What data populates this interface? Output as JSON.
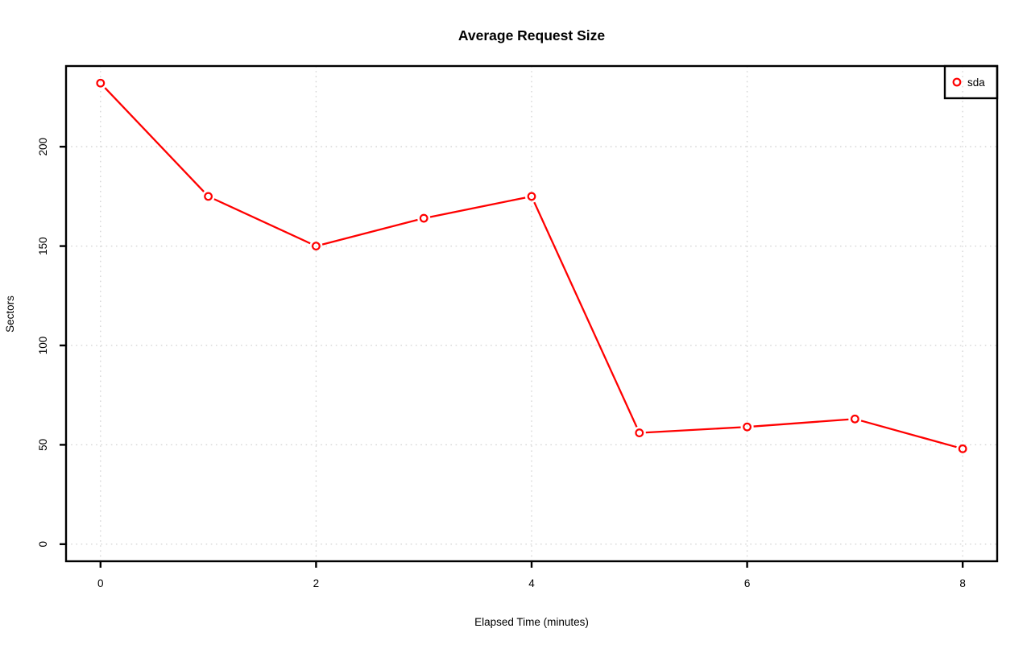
{
  "chart_data": {
    "type": "line",
    "title": "Average Request Size",
    "xlabel": "Elapsed Time (minutes)",
    "ylabel": "Sectors",
    "x": [
      0,
      1,
      2,
      3,
      4,
      5,
      6,
      7,
      8
    ],
    "series": [
      {
        "name": "sda",
        "color": "#ff0000",
        "marker": "open-circle",
        "values": [
          232,
          175,
          150,
          164,
          175,
          56,
          59,
          63,
          48
        ]
      }
    ],
    "x_axis": {
      "ticks": [
        0,
        2,
        4,
        6,
        8
      ],
      "range": [
        -0.32,
        8.32
      ]
    },
    "y_axis": {
      "ticks": [
        0,
        50,
        100,
        150,
        200
      ],
      "range": [
        -8.6,
        240.6
      ]
    },
    "grid": "dotted",
    "grid_color": "#d2d2d2",
    "axis_color": "#000000",
    "background": "#ffffff",
    "legend": {
      "position": "topright",
      "entries": [
        "sda"
      ]
    }
  }
}
